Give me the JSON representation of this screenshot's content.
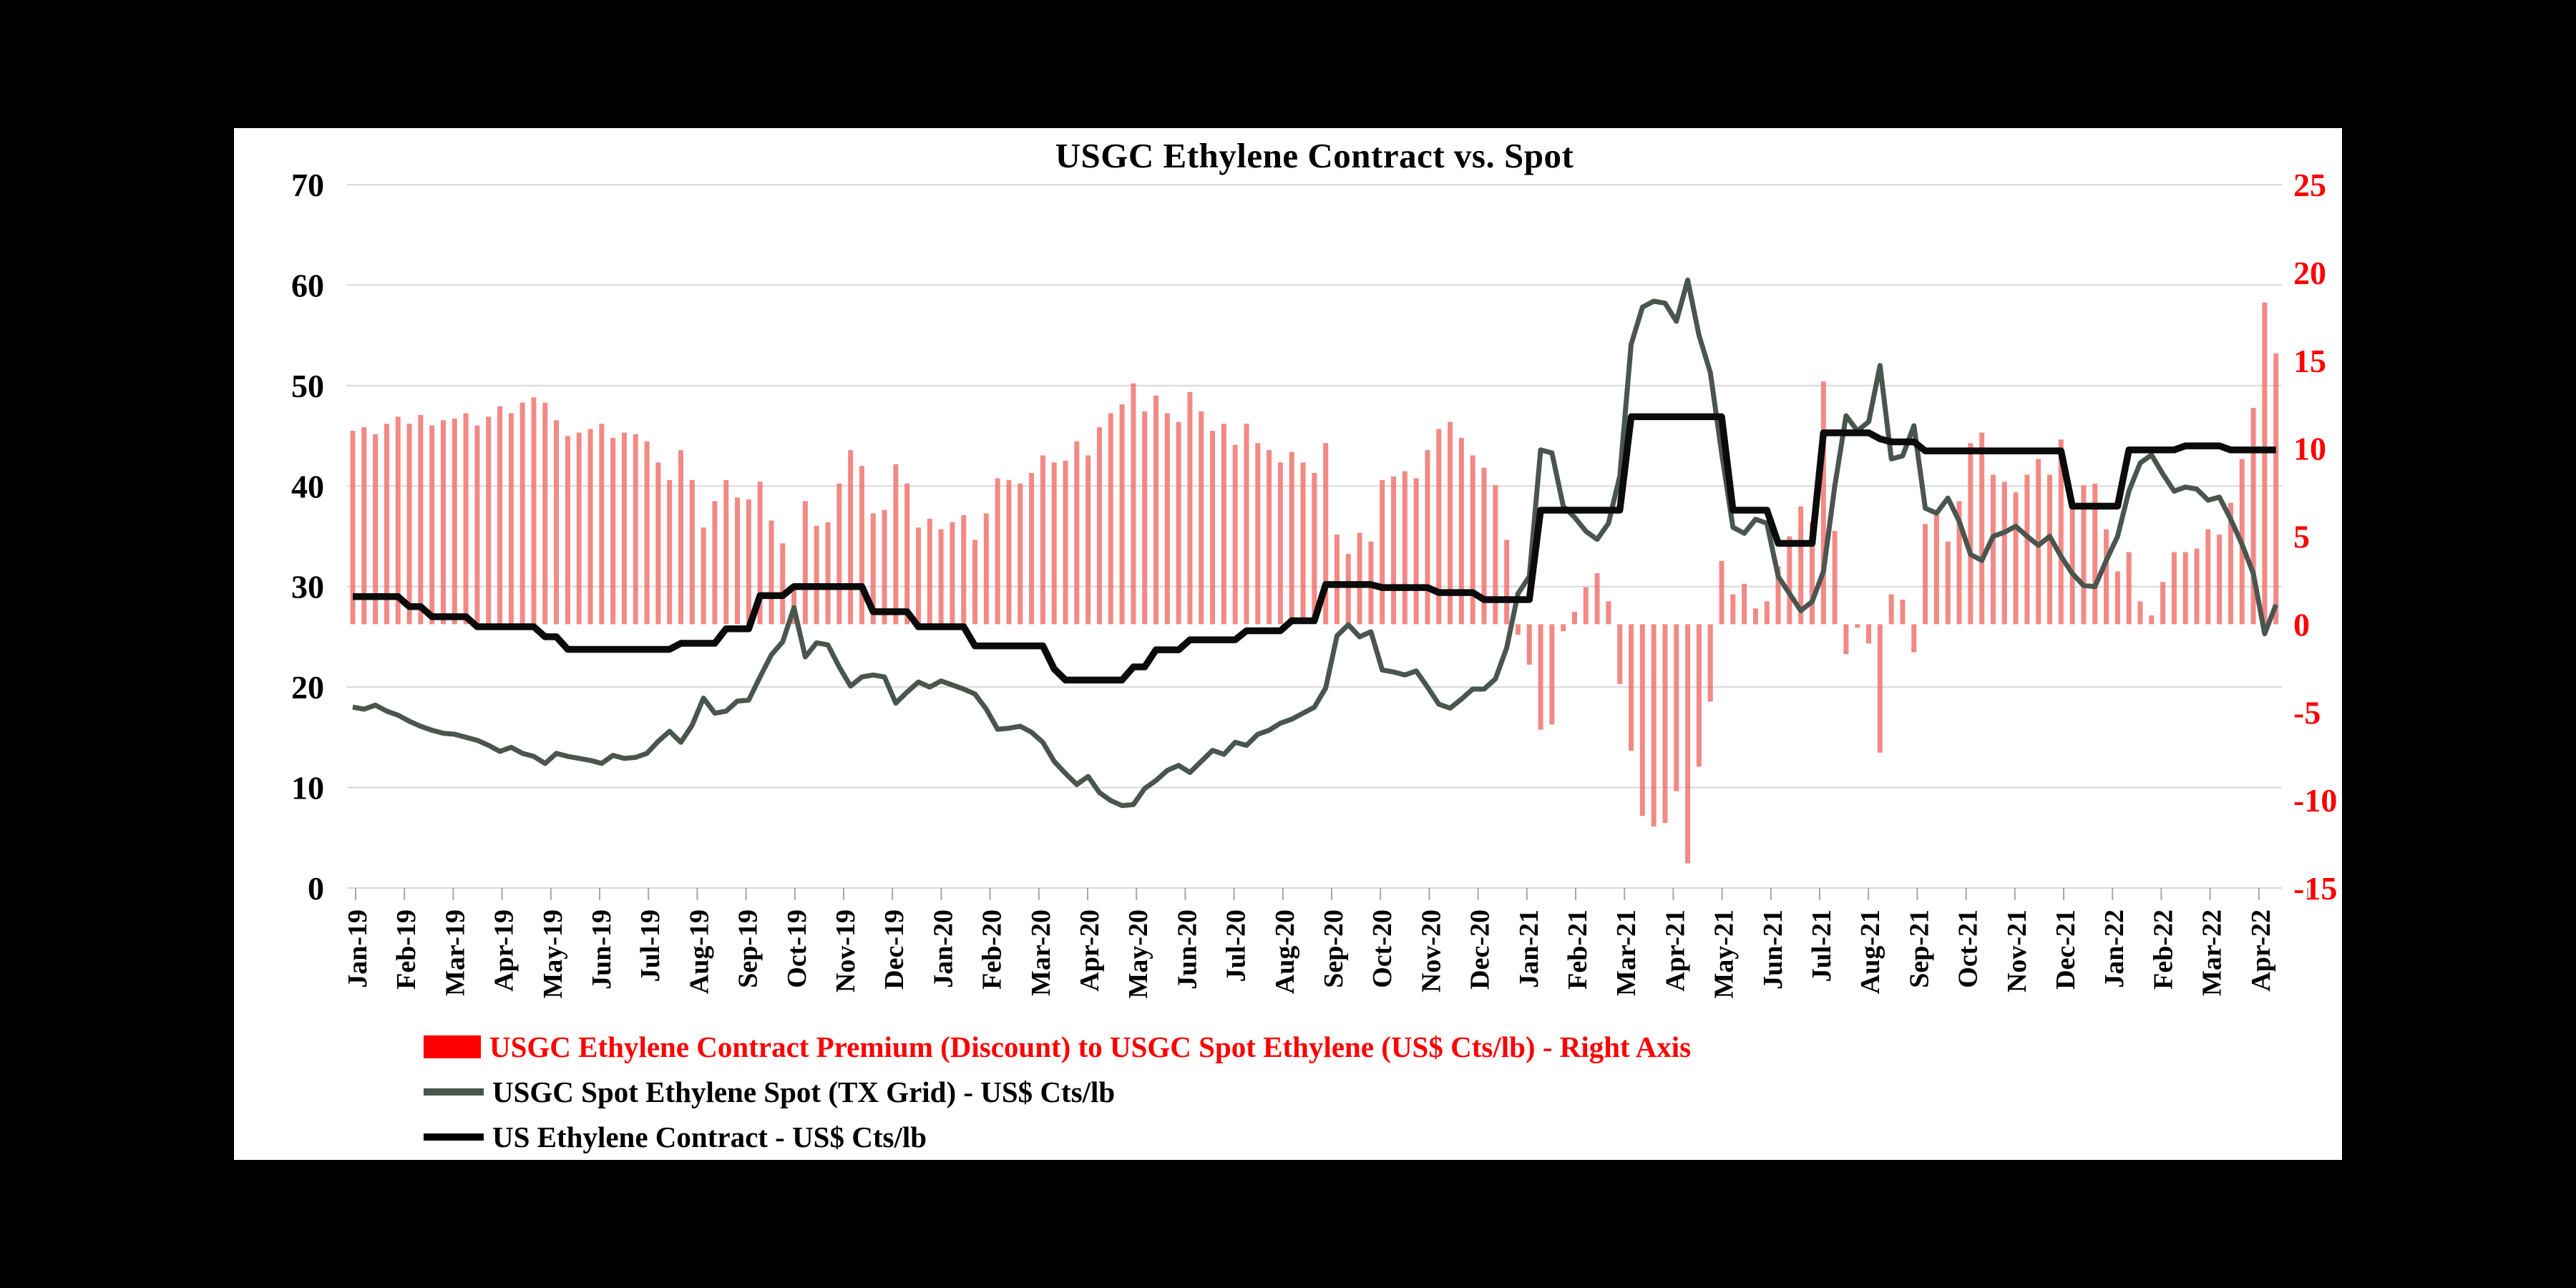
{
  "chart": {
    "title": "USGC Ethylene Contract vs. Spot",
    "background": "#ffffff",
    "page_background": "#000000",
    "legend": [
      {
        "label": "USGC Ethylene Contract Premium (Discount) to USGC Spot Ethylene (US$ Cts/lb) - Right Axis",
        "marker": "bar",
        "marker_color": "#ff0000",
        "text_color": "#ff0000"
      },
      {
        "label": "USGC Spot Ethylene Spot (TX Grid) - US$ Cts/lb",
        "marker": "line",
        "marker_color": "#4a554f",
        "text_color": "#000000"
      },
      {
        "label": "US Ethylene Contract - US$ Cts/lb",
        "marker": "line",
        "marker_color": "#000000",
        "text_color": "#000000"
      }
    ]
  },
  "chart_data": {
    "type": "bar+line",
    "title": "USGC Ethylene Contract vs. Spot",
    "x_label_frequency": "monthly",
    "data_frequency": "weekly",
    "grid": "horizontal",
    "legend_position": "bottom-left",
    "left_axis": {
      "range": [
        0,
        70
      ],
      "ticks": [
        70,
        60,
        50,
        40,
        30,
        20,
        10,
        0
      ],
      "color": "#000000"
    },
    "right_axis": {
      "range": [
        -15,
        25
      ],
      "ticks": [
        25,
        20,
        15,
        10,
        5,
        0,
        -5,
        -10,
        -15
      ],
      "color": "#ff0000"
    },
    "x_labels": [
      "Jan-19",
      "Feb-19",
      "Mar-19",
      "Apr-19",
      "May-19",
      "Jun-19",
      "Jul-19",
      "Aug-19",
      "Sep-19",
      "Oct-19",
      "Nov-19",
      "Dec-19",
      "Jan-20",
      "Feb-20",
      "Mar-20",
      "Apr-20",
      "May-20",
      "Jun-20",
      "Jul-20",
      "Aug-20",
      "Sep-20",
      "Oct-20",
      "Nov-20",
      "Dec-20",
      "Jan-21",
      "Feb-21",
      "Mar-21",
      "Apr-21",
      "May-21",
      "Jun-21",
      "Jul-21",
      "Aug-21",
      "Sep-21",
      "Oct-21",
      "Nov-21",
      "Dec-21",
      "Jan-22",
      "Feb-22",
      "Mar-22",
      "Apr-22"
    ],
    "weeks_per_month": [
      5,
      4,
      4,
      5,
      4,
      4,
      5,
      4,
      4,
      5,
      4,
      4,
      5,
      4,
      4,
      5,
      4,
      4,
      5,
      4,
      4,
      5,
      4,
      4,
      5,
      4,
      4,
      5,
      4,
      4,
      5,
      4,
      4,
      5,
      4,
      4,
      5,
      4,
      4,
      2
    ],
    "series": [
      {
        "name": "USGC Ethylene Contract Premium (Discount) to USGC Spot Ethylene (US$ Cts/lb) - Right Axis",
        "type": "bar",
        "axis": "right",
        "color": "#ef6b67",
        "derivation": "contract minus spot",
        "values": [
          11.0,
          11.2,
          10.8,
          11.4,
          11.8,
          11.4,
          11.9,
          11.3,
          11.6,
          11.7,
          12.0,
          11.3,
          11.8,
          12.4,
          12.0,
          12.6,
          12.9,
          12.6,
          11.6,
          10.7,
          10.9,
          11.1,
          11.4,
          10.6,
          10.9,
          10.8,
          10.4,
          9.2,
          8.2,
          9.9,
          8.2,
          5.5,
          7.0,
          8.2,
          7.2,
          7.1,
          8.1,
          5.9,
          4.6,
          2.1,
          7.0,
          5.6,
          5.8,
          8.0,
          9.9,
          9.0,
          6.3,
          6.5,
          9.1,
          8.0,
          5.5,
          6.0,
          5.4,
          5.8,
          6.2,
          4.8,
          6.3,
          8.3,
          8.2,
          8.0,
          8.6,
          9.6,
          9.2,
          9.3,
          10.4,
          9.6,
          11.2,
          12.0,
          12.5,
          13.7,
          12.1,
          13.0,
          12.0,
          11.5,
          13.2,
          12.1,
          11.0,
          11.4,
          10.2,
          11.4,
          10.3,
          9.9,
          9.2,
          9.8,
          9.2,
          8.6,
          10.3,
          5.1,
          4.0,
          5.2,
          4.7,
          8.2,
          8.4,
          8.7,
          8.3,
          9.9,
          11.1,
          11.5,
          10.6,
          9.6,
          8.9,
          7.9,
          4.8,
          -0.6,
          -2.3,
          -6.0,
          -5.7,
          -0.4,
          0.7,
          2.1,
          2.9,
          1.3,
          -3.4,
          -7.2,
          -10.9,
          -11.5,
          -11.3,
          -9.5,
          -13.6,
          -8.1,
          -4.4,
          3.6,
          1.7,
          2.3,
          0.9,
          1.3,
          3.3,
          5.0,
          6.7,
          5.8,
          13.8,
          5.3,
          -1.7,
          -0.2,
          -1.1,
          -7.3,
          1.7,
          1.4,
          -1.6,
          5.7,
          6.2,
          4.7,
          7.0,
          10.3,
          10.9,
          8.5,
          8.1,
          7.5,
          8.5,
          9.4,
          8.5,
          10.5,
          6.7,
          7.9,
          8.0,
          5.4,
          3.0,
          4.1,
          1.3,
          0.5,
          2.4,
          4.1,
          4.1,
          4.3,
          5.4,
          5.1,
          6.9,
          9.4,
          12.3,
          18.3,
          15.4
        ]
      },
      {
        "name": "USGC Spot Ethylene Spot (TX Grid) - US$ Cts/lb",
        "type": "line",
        "axis": "left",
        "color": "#4a554f",
        "values": [
          18.0,
          17.8,
          18.2,
          17.6,
          17.2,
          16.6,
          16.1,
          15.7,
          15.4,
          15.3,
          15.0,
          14.7,
          14.2,
          13.6,
          14.0,
          13.4,
          13.1,
          12.4,
          13.4,
          13.1,
          12.9,
          12.7,
          12.4,
          13.2,
          12.9,
          13.0,
          13.4,
          14.6,
          15.6,
          14.5,
          16.2,
          18.9,
          17.4,
          17.6,
          18.6,
          18.7,
          21.0,
          23.2,
          24.5,
          27.9,
          23.0,
          24.4,
          24.2,
          22.0,
          20.1,
          21.0,
          21.2,
          21.0,
          18.4,
          19.5,
          20.5,
          20.0,
          20.6,
          20.2,
          19.8,
          19.3,
          17.8,
          15.8,
          15.9,
          16.1,
          15.5,
          14.5,
          12.6,
          11.4,
          10.3,
          11.1,
          9.5,
          8.7,
          8.2,
          8.3,
          9.9,
          10.7,
          11.7,
          12.2,
          11.5,
          12.6,
          13.7,
          13.3,
          14.5,
          14.2,
          15.3,
          15.7,
          16.4,
          16.8,
          17.4,
          18.0,
          19.9,
          25.1,
          26.2,
          25.0,
          25.5,
          21.7,
          21.5,
          21.2,
          21.6,
          20.0,
          18.3,
          17.9,
          18.8,
          19.8,
          19.8,
          20.8,
          23.9,
          29.3,
          31.0,
          43.6,
          43.3,
          38.0,
          36.9,
          35.5,
          34.7,
          36.3,
          41.0,
          54.1,
          57.8,
          58.4,
          58.2,
          56.4,
          60.5,
          55.0,
          51.3,
          43.3,
          35.9,
          35.3,
          36.7,
          36.3,
          31.0,
          29.3,
          27.6,
          28.5,
          31.5,
          40.0,
          47.0,
          45.5,
          46.4,
          52.0,
          42.7,
          43.0,
          46.0,
          37.8,
          37.3,
          38.8,
          36.5,
          33.2,
          32.6,
          35.0,
          35.4,
          36.0,
          35.0,
          34.1,
          35.0,
          33.0,
          31.3,
          30.1,
          30.0,
          32.6,
          35.0,
          39.5,
          42.3,
          43.1,
          41.2,
          39.5,
          39.9,
          39.7,
          38.6,
          38.9,
          36.7,
          34.2,
          31.3,
          25.3,
          28.2
        ]
      },
      {
        "name": "US Ethylene Contract - US$ Cts/lb",
        "type": "line",
        "axis": "left",
        "color": "#0b0b0b",
        "values": [
          29,
          29,
          29,
          29,
          29,
          28,
          28,
          27,
          27,
          27,
          27,
          26,
          26,
          26,
          26,
          26,
          26,
          25,
          25,
          23.75,
          23.75,
          23.75,
          23.75,
          23.75,
          23.75,
          23.75,
          23.75,
          23.75,
          23.75,
          24.35,
          24.35,
          24.35,
          24.35,
          25.8,
          25.8,
          25.8,
          29.1,
          29.1,
          29.1,
          30,
          30,
          30,
          30,
          30,
          30,
          30,
          27.5,
          27.5,
          27.5,
          27.5,
          26,
          26,
          26,
          26,
          26,
          24.1,
          24.1,
          24.1,
          24.1,
          24.1,
          24.1,
          24.1,
          21.8,
          20.7,
          20.7,
          20.7,
          20.7,
          20.7,
          20.7,
          22,
          22,
          23.7,
          23.7,
          23.7,
          24.7,
          24.7,
          24.7,
          24.7,
          24.7,
          25.6,
          25.6,
          25.6,
          25.6,
          26.6,
          26.6,
          26.6,
          30.2,
          30.2,
          30.2,
          30.2,
          30.2,
          29.9,
          29.9,
          29.9,
          29.9,
          29.9,
          29.4,
          29.4,
          29.4,
          29.4,
          28.7,
          28.7,
          28.7,
          28.7,
          28.7,
          37.6,
          37.6,
          37.6,
          37.6,
          37.6,
          37.6,
          37.6,
          37.6,
          46.9,
          46.9,
          46.9,
          46.9,
          46.9,
          46.9,
          46.9,
          46.9,
          46.9,
          37.6,
          37.6,
          37.6,
          37.6,
          34.3,
          34.3,
          34.3,
          34.3,
          45.3,
          45.3,
          45.3,
          45.3,
          45.3,
          44.7,
          44.4,
          44.4,
          44.4,
          43.5,
          43.5,
          43.5,
          43.5,
          43.5,
          43.5,
          43.5,
          43.5,
          43.5,
          43.5,
          43.5,
          43.5,
          43.5,
          38,
          38,
          38,
          38,
          38,
          43.6,
          43.6,
          43.6,
          43.6,
          43.6,
          44,
          44,
          44,
          44,
          43.6,
          43.6,
          43.6,
          43.6,
          43.6
        ]
      }
    ],
    "colors": {
      "gridline": "#d9d9d9",
      "axis_tick": "#a6a6a6",
      "bar": "#ef6b67",
      "spot_line": "#4a554f",
      "contract_line": "#0b0b0b",
      "right_axis_text": "#ff0000"
    }
  }
}
